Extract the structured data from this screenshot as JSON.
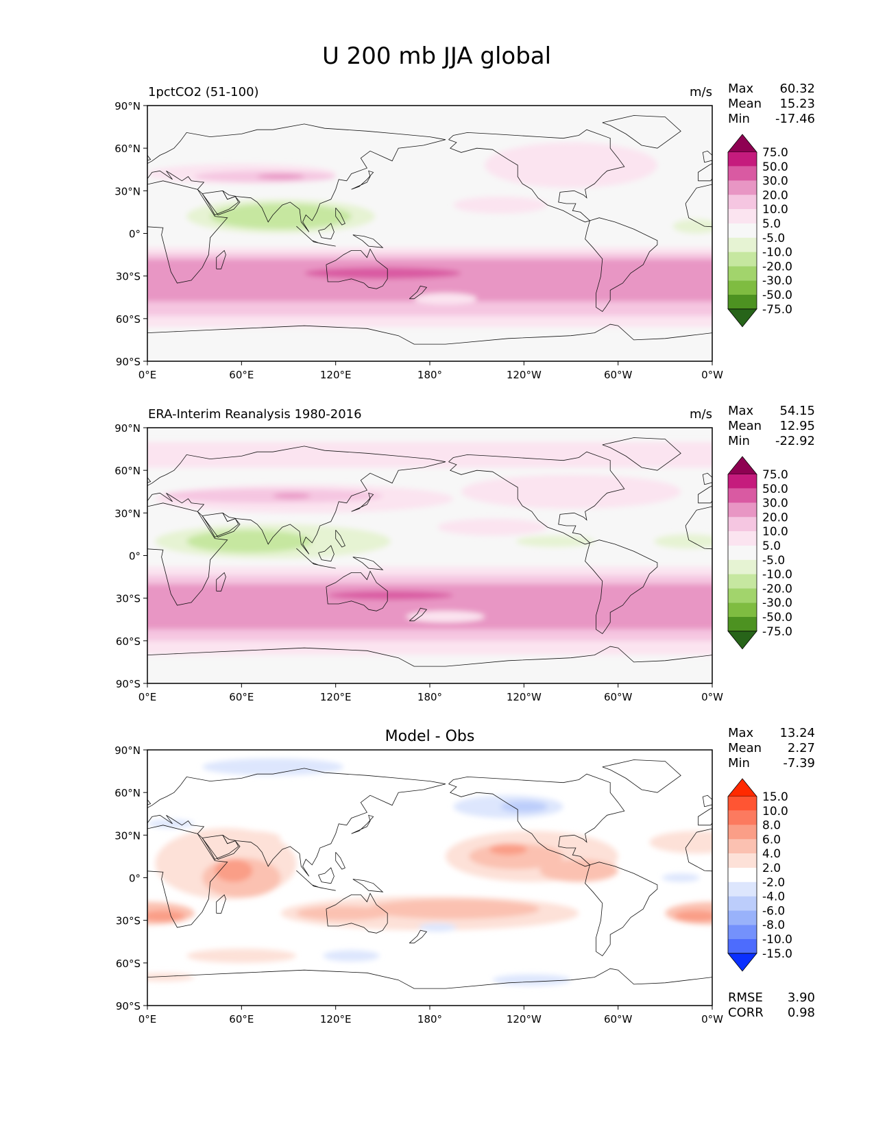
{
  "title": "U 200 mb JJA global",
  "axes": {
    "lat_ticks": [
      "90°N",
      "60°N",
      "30°N",
      "0°",
      "30°S",
      "60°S",
      "90°S"
    ],
    "lon_ticks": [
      "0°E",
      "60°E",
      "120°E",
      "180°",
      "120°W",
      "60°W",
      "0°W"
    ]
  },
  "panels": [
    {
      "id": "model",
      "left_title": "1pctCO2 (51-100)",
      "center_title": "",
      "units": "m/s",
      "stats": [
        {
          "label": "Max",
          "value": "60.32"
        },
        {
          "label": "Mean",
          "value": "15.23"
        },
        {
          "label": "Min",
          "value": "-17.46"
        }
      ],
      "extra_stats": [],
      "colorbar": "full",
      "features": [
        {
          "shape": "band",
          "lat0": -90,
          "lat1": -66,
          "lon0": 0,
          "lon1": 360,
          "level": 0
        },
        {
          "shape": "band",
          "lat0": -66,
          "lat1": -58,
          "lon0": 0,
          "lon1": 360,
          "level": 1
        },
        {
          "shape": "band",
          "lat0": -58,
          "lat1": -48,
          "lon0": 0,
          "lon1": 360,
          "level": 2
        },
        {
          "shape": "band",
          "lat0": -48,
          "lat1": -18,
          "lon0": 0,
          "lon1": 360,
          "level": 3
        },
        {
          "shape": "band",
          "lat0": -18,
          "lat1": -14,
          "lon0": 0,
          "lon1": 360,
          "level": 2
        },
        {
          "shape": "band",
          "lat0": -14,
          "lat1": -10,
          "lon0": 0,
          "lon1": 360,
          "level": 1
        },
        {
          "shape": "blob",
          "lat": -28,
          "lon": 150,
          "dlat": 4,
          "dlon": 50,
          "level": 4
        },
        {
          "shape": "blob",
          "lat": -46,
          "lon": 190,
          "dlat": 4,
          "dlon": 20,
          "level": 1
        },
        {
          "shape": "blob",
          "lat": 42,
          "lon": 60,
          "dlat": 7,
          "dlon": 60,
          "level": 1
        },
        {
          "shape": "blob",
          "lat": 40,
          "lon": 75,
          "dlat": 4,
          "dlon": 45,
          "level": 2
        },
        {
          "shape": "blob",
          "lat": 40,
          "lon": 85,
          "dlat": 2,
          "dlon": 15,
          "level": 3
        },
        {
          "shape": "blob",
          "lat": 44,
          "lon": 290,
          "dlat": 5,
          "dlon": 30,
          "level": 2
        },
        {
          "shape": "blob",
          "lat": 48,
          "lon": 270,
          "dlat": 16,
          "dlon": 55,
          "level": 1
        },
        {
          "shape": "blob",
          "lat": 20,
          "lon": 225,
          "dlat": 6,
          "dlon": 30,
          "level": 1
        },
        {
          "shape": "blob",
          "lat": 12,
          "lon": 85,
          "dlat": 12,
          "dlon": 60,
          "level": -1
        },
        {
          "shape": "blob",
          "lat": 12,
          "lon": 85,
          "dlat": 9,
          "dlon": 45,
          "level": -2
        },
        {
          "shape": "blob",
          "lat": 5,
          "lon": 350,
          "dlat": 5,
          "dlon": 15,
          "level": -1
        }
      ]
    },
    {
      "id": "obs",
      "left_title": "ERA-Interim Reanalysis 1980-2016",
      "center_title": "",
      "units": "m/s",
      "stats": [
        {
          "label": "Max",
          "value": "54.15"
        },
        {
          "label": "Mean",
          "value": "12.95"
        },
        {
          "label": "Min",
          "value": "-22.92"
        }
      ],
      "extra_stats": [],
      "colorbar": "full",
      "features": [
        {
          "shape": "band",
          "lat0": -90,
          "lat1": -70,
          "lon0": 0,
          "lon1": 360,
          "level": 0
        },
        {
          "shape": "band",
          "lat0": -70,
          "lat1": -60,
          "lon0": 0,
          "lon1": 360,
          "level": 1
        },
        {
          "shape": "band",
          "lat0": -60,
          "lat1": -52,
          "lon0": 0,
          "lon1": 360,
          "level": 2
        },
        {
          "shape": "band",
          "lat0": -52,
          "lat1": -20,
          "lon0": 0,
          "lon1": 360,
          "level": 3
        },
        {
          "shape": "band",
          "lat0": -20,
          "lat1": -14,
          "lon0": 0,
          "lon1": 360,
          "level": 2
        },
        {
          "shape": "band",
          "lat0": -14,
          "lat1": -8,
          "lon0": 0,
          "lon1": 360,
          "level": 1
        },
        {
          "shape": "blob",
          "lat": -28,
          "lon": 155,
          "dlat": 3,
          "dlon": 40,
          "level": 4
        },
        {
          "shape": "blob",
          "lat": -43,
          "lon": 190,
          "dlat": 4,
          "dlon": 25,
          "level": 1
        },
        {
          "shape": "band",
          "lat0": 62,
          "lat1": 80,
          "lon0": 0,
          "lon1": 360,
          "level": 1
        },
        {
          "shape": "blob",
          "lat": 40,
          "lon": 100,
          "dlat": 10,
          "dlon": 95,
          "level": 1
        },
        {
          "shape": "blob",
          "lat": 42,
          "lon": 80,
          "dlat": 5,
          "dlon": 70,
          "level": 2
        },
        {
          "shape": "blob",
          "lat": 42,
          "lon": 92,
          "dlat": 2,
          "dlon": 12,
          "level": 3
        },
        {
          "shape": "blob",
          "lat": 44,
          "lon": 290,
          "dlat": 5,
          "dlon": 45,
          "level": 2
        },
        {
          "shape": "blob",
          "lat": 45,
          "lon": 270,
          "dlat": 12,
          "dlon": 70,
          "level": 1
        },
        {
          "shape": "blob",
          "lat": 20,
          "lon": 220,
          "dlat": 6,
          "dlon": 35,
          "level": 1
        },
        {
          "shape": "blob",
          "lat": 10,
          "lon": 80,
          "dlat": 12,
          "dlon": 75,
          "level": -1
        },
        {
          "shape": "blob",
          "lat": 10,
          "lon": 65,
          "dlat": 8,
          "dlon": 40,
          "level": -2
        },
        {
          "shape": "blob",
          "lat": 10,
          "lon": 260,
          "dlat": 4,
          "dlon": 25,
          "level": -1
        },
        {
          "shape": "blob",
          "lat": 10,
          "lon": 345,
          "dlat": 5,
          "dlon": 22,
          "level": -1
        }
      ]
    },
    {
      "id": "diff",
      "left_title": "",
      "center_title": "Model - Obs",
      "units": "",
      "stats": [
        {
          "label": "Max",
          "value": "13.24"
        },
        {
          "label": "Mean",
          "value": "2.27"
        },
        {
          "label": "Min",
          "value": "-7.39"
        }
      ],
      "extra_stats": [
        {
          "label": "RMSE",
          "value": "3.90"
        },
        {
          "label": "CORR",
          "value": "0.98"
        }
      ],
      "colorbar": "diff",
      "features": [
        {
          "shape": "blob",
          "lat": 10,
          "lon": 50,
          "dlat": 25,
          "dlon": 45,
          "level": 1
        },
        {
          "shape": "blob",
          "lat": 0,
          "lon": 60,
          "dlat": 14,
          "dlon": 25,
          "level": 2
        },
        {
          "shape": "blob",
          "lat": 5,
          "lon": 55,
          "dlat": 8,
          "dlon": 12,
          "level": 3
        },
        {
          "shape": "blob",
          "lat": -25,
          "lon": 0,
          "dlat": 8,
          "dlon": 30,
          "level": 2
        },
        {
          "shape": "blob",
          "lat": -27,
          "lon": 10,
          "dlat": 4,
          "dlon": 14,
          "level": 3
        },
        {
          "shape": "blob",
          "lat": -25,
          "lon": 360,
          "dlat": 8,
          "dlon": 30,
          "level": 2
        },
        {
          "shape": "blob",
          "lat": -27,
          "lon": 350,
          "dlat": 4,
          "dlon": 14,
          "level": 3
        },
        {
          "shape": "blob",
          "lat": -25,
          "lon": 180,
          "dlat": 12,
          "dlon": 95,
          "level": 1
        },
        {
          "shape": "blob",
          "lat": -22,
          "lon": 195,
          "dlat": 7,
          "dlon": 55,
          "level": 2
        },
        {
          "shape": "blob",
          "lat": -25,
          "lon": 125,
          "dlat": 5,
          "dlon": 30,
          "level": 2
        },
        {
          "shape": "blob",
          "lat": 15,
          "lon": 245,
          "dlat": 18,
          "dlon": 55,
          "level": 1
        },
        {
          "shape": "blob",
          "lat": 15,
          "lon": 235,
          "dlat": 9,
          "dlon": 30,
          "level": 2
        },
        {
          "shape": "blob",
          "lat": 20,
          "lon": 230,
          "dlat": 4,
          "dlon": 12,
          "level": 3
        },
        {
          "shape": "blob",
          "lat": 5,
          "lon": 275,
          "dlat": 8,
          "dlon": 25,
          "level": 2
        },
        {
          "shape": "blob",
          "lat": 25,
          "lon": 350,
          "dlat": 8,
          "dlon": 30,
          "level": 1
        },
        {
          "shape": "blob",
          "lat": 28,
          "lon": 65,
          "dlat": 5,
          "dlon": 20,
          "level": 1
        },
        {
          "shape": "blob",
          "lat": 50,
          "lon": 230,
          "dlat": 8,
          "dlon": 35,
          "level": -1
        },
        {
          "shape": "blob",
          "lat": 50,
          "lon": 240,
          "dlat": 4,
          "dlon": 15,
          "level": -2
        },
        {
          "shape": "blob",
          "lat": 78,
          "lon": 80,
          "dlat": 6,
          "dlon": 45,
          "level": -1
        },
        {
          "shape": "blob",
          "lat": 38,
          "lon": 15,
          "dlat": 3,
          "dlon": 15,
          "level": -1
        },
        {
          "shape": "blob",
          "lat": 0,
          "lon": 340,
          "dlat": 3,
          "dlon": 12,
          "level": -1
        },
        {
          "shape": "blob",
          "lat": -35,
          "lon": 185,
          "dlat": 3,
          "dlon": 12,
          "level": -1
        },
        {
          "shape": "blob",
          "lat": -55,
          "lon": 130,
          "dlat": 4,
          "dlon": 18,
          "level": -1
        },
        {
          "shape": "blob",
          "lat": -72,
          "lon": 245,
          "dlat": 4,
          "dlon": 25,
          "level": -1
        },
        {
          "shape": "blob",
          "lat": -55,
          "lon": 60,
          "dlat": 5,
          "dlon": 35,
          "level": 1
        },
        {
          "shape": "blob",
          "lat": -70,
          "lon": 10,
          "dlat": 3,
          "dlon": 20,
          "level": 1
        }
      ]
    }
  ],
  "chart_data": {
    "type": "heatmap",
    "title": "U 200 mb JJA global",
    "xlabel": "",
    "ylabel": "",
    "xlim": [
      0,
      360
    ],
    "ylim": [
      -90,
      90
    ],
    "x_ticks": [
      0,
      60,
      120,
      180,
      240,
      300,
      360
    ],
    "y_ticks": [
      90,
      60,
      30,
      0,
      -30,
      -60,
      -90
    ],
    "panels": [
      {
        "name": "1pctCO2 (51-100)",
        "units": "m/s",
        "max": 60.32,
        "mean": 15.23,
        "min": -17.46,
        "levels": [
          -75,
          -50,
          -30,
          -20,
          -10,
          -5,
          5,
          10,
          20,
          30,
          50,
          75
        ],
        "level_labels": [
          "75.0",
          "50.0",
          "30.0",
          "20.0",
          "10.0",
          "5.0",
          "-5.0",
          "-10.0",
          "-20.0",
          "-30.0",
          "-50.0",
          "-75.0"
        ]
      },
      {
        "name": "ERA-Interim Reanalysis 1980-2016",
        "units": "m/s",
        "max": 54.15,
        "mean": 12.95,
        "min": -22.92,
        "levels": [
          -75,
          -50,
          -30,
          -20,
          -10,
          -5,
          5,
          10,
          20,
          30,
          50,
          75
        ],
        "level_labels": [
          "75.0",
          "50.0",
          "30.0",
          "20.0",
          "10.0",
          "5.0",
          "-5.0",
          "-10.0",
          "-20.0",
          "-30.0",
          "-50.0",
          "-75.0"
        ]
      },
      {
        "name": "Model - Obs",
        "units": "",
        "max": 13.24,
        "mean": 2.27,
        "min": -7.39,
        "rmse": 3.9,
        "corr": 0.98,
        "levels": [
          -15,
          -10,
          -8,
          -6,
          -4,
          -2,
          2,
          4,
          6,
          8,
          10,
          15
        ],
        "level_labels": [
          "15.0",
          "10.0",
          "8.0",
          "6.0",
          "4.0",
          "2.0",
          "-2.0",
          "-4.0",
          "-6.0",
          "-8.0",
          "-10.0",
          "-15.0"
        ]
      }
    ],
    "colorbars": {
      "full": {
        "labels": [
          "75.0",
          "50.0",
          "30.0",
          "20.0",
          "10.0",
          "5.0",
          "-5.0",
          "-10.0",
          "-20.0",
          "-30.0",
          "-50.0",
          "-75.0"
        ],
        "colors": [
          "#8e0152",
          "#c51b7d",
          "#d95aa2",
          "#e896c4",
          "#f5c6e1",
          "#fbe4f0",
          "#f7f7f7",
          "#e6f3d3",
          "#c6e7a0",
          "#a2d46c",
          "#7fbc41",
          "#4d9221",
          "#276419"
        ]
      },
      "diff": {
        "labels": [
          "15.0",
          "10.0",
          "8.0",
          "6.0",
          "4.0",
          "2.0",
          "-2.0",
          "-4.0",
          "-6.0",
          "-8.0",
          "-10.0",
          "-15.0"
        ],
        "colors": [
          "#ff2a00",
          "#ff5533",
          "#fc7a5f",
          "#fa9e87",
          "#fbc1b1",
          "#fde1d8",
          "#ffffff",
          "#dde6fd",
          "#bccdfb",
          "#99b2fa",
          "#7491fc",
          "#4d6cfd",
          "#0a30ff"
        ]
      }
    }
  }
}
